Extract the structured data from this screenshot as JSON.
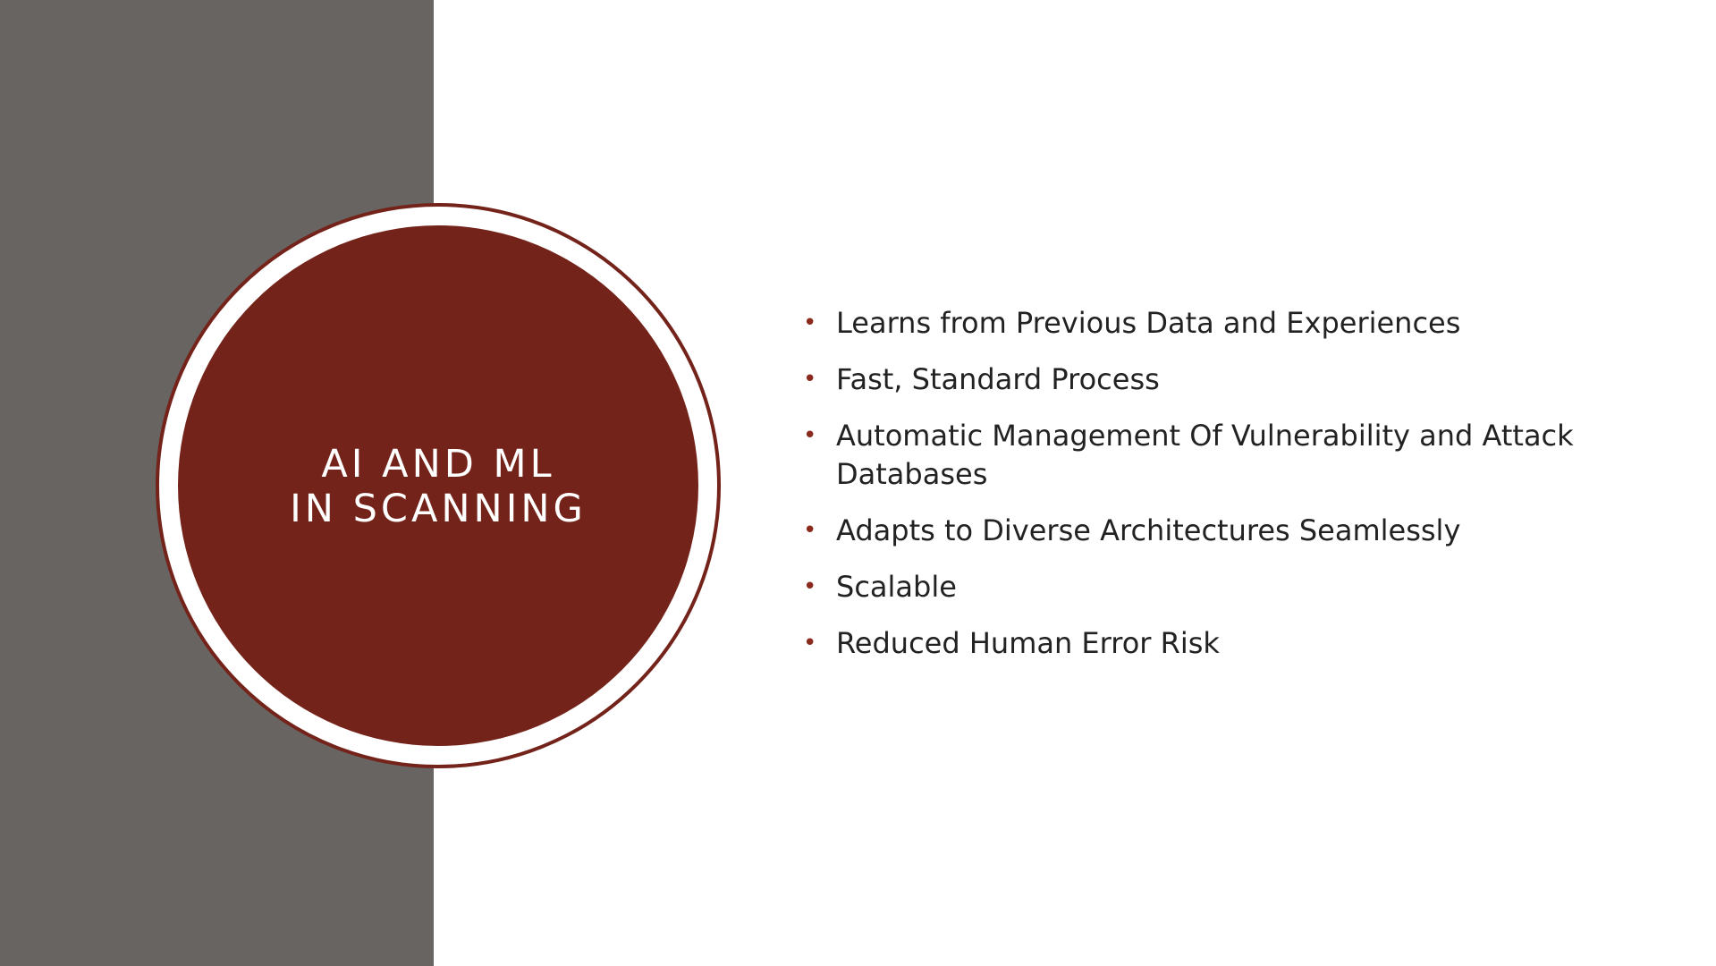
{
  "slide": {
    "title_lines": [
      "AI AND ML",
      "IN SCANNING"
    ],
    "bullet_symbol": "•",
    "bullets": [
      "Learns from Previous Data and Experiences",
      "Fast, Standard Process",
      "Automatic Management Of Vulnerability and Attack Databases",
      "Adapts to Diverse Architectures Seamlessly",
      "Scalable",
      "Reduced Human Error Risk"
    ]
  },
  "colors": {
    "side_panel": "#686462",
    "accent": "#74231a",
    "text": "#222222",
    "title_text": "#ffffff"
  }
}
